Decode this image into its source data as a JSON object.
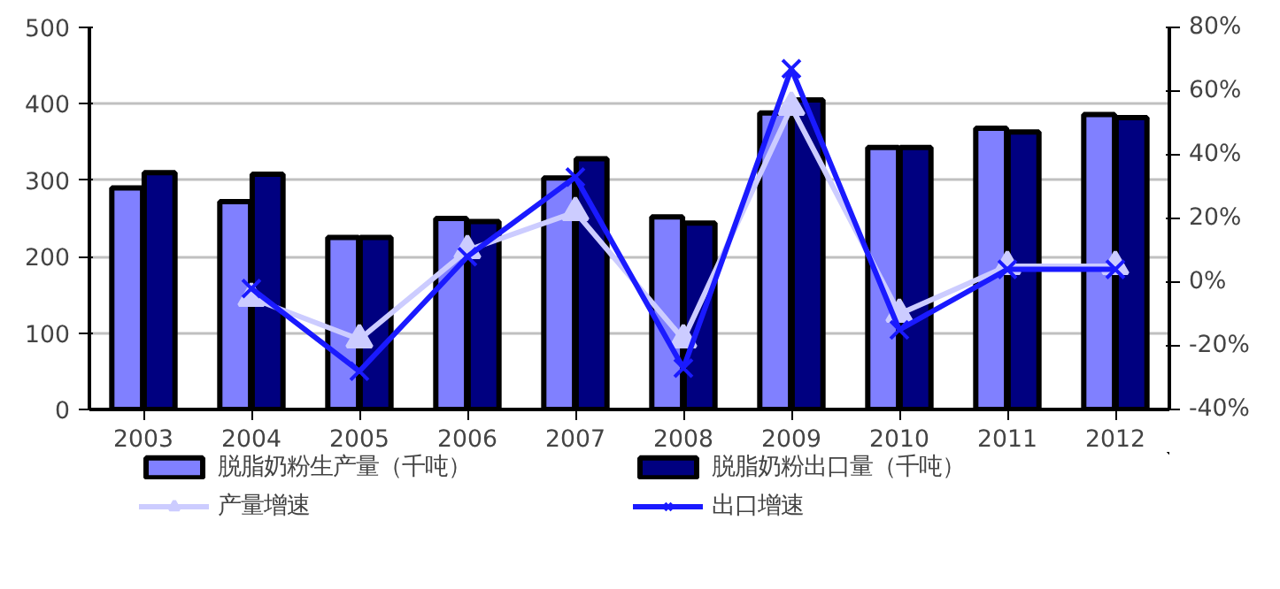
{
  "chart_data": {
    "type": "bar",
    "categories": [
      "2003",
      "2004",
      "2005",
      "2006",
      "2007",
      "2008",
      "2009",
      "2010",
      "2011",
      "2012"
    ],
    "series": [
      {
        "name": "脱脂奶粉生产量（千吨）",
        "color": "#8080ff",
        "values": [
          290,
          272,
          225,
          250,
          303,
          252,
          388,
          343,
          368,
          386
        ]
      },
      {
        "name": "脱脂奶粉出口量（千吨）",
        "color": "#000080",
        "values": [
          310,
          308,
          225,
          246,
          328,
          244,
          405,
          343,
          363,
          382
        ]
      },
      {
        "name": "产量增速",
        "type": "line",
        "axis": "y2",
        "color": "#ccccff",
        "marker": "triangle",
        "values": [
          null,
          -5,
          -18,
          10,
          22,
          -18,
          55,
          -10,
          5,
          5
        ]
      },
      {
        "name": "出口增速",
        "type": "line",
        "axis": "y2",
        "color": "#1a1aff",
        "marker": "cross",
        "values": [
          null,
          -2,
          -28,
          8,
          33,
          -27,
          67,
          -15,
          4,
          4
        ]
      }
    ],
    "ylim": [
      0,
      500
    ],
    "yticks": [
      0,
      100,
      200,
      300,
      400,
      500
    ],
    "y2lim": [
      -40,
      80
    ],
    "y2ticks": [
      {
        "value": -40,
        "label": "-40%"
      },
      {
        "value": -20,
        "label": "-20%"
      },
      {
        "value": 0,
        "label": "0%"
      },
      {
        "value": 20,
        "label": "20%"
      },
      {
        "value": 40,
        "label": "40%"
      },
      {
        "value": 60,
        "label": "60%"
      },
      {
        "value": 80,
        "label": "80%"
      }
    ],
    "grid": "y",
    "legend": "bottom"
  }
}
